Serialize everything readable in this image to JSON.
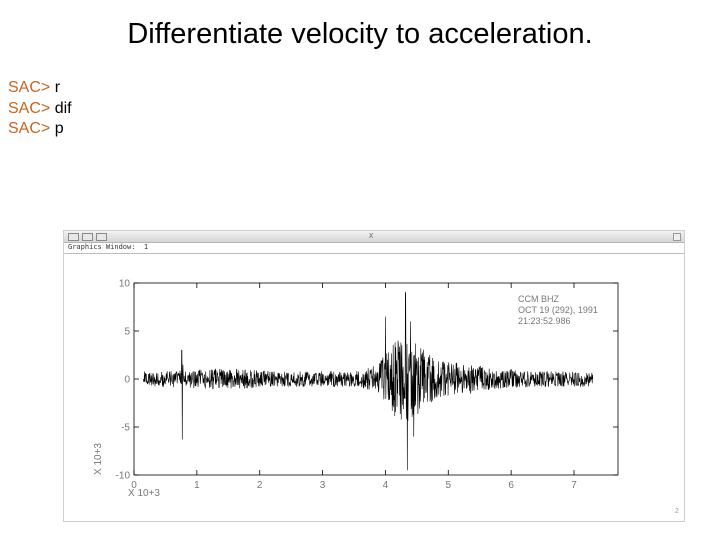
{
  "slide": {
    "title": "Differentiate velocity to acceleration."
  },
  "commands": [
    {
      "prompt": "SAC>",
      "text": "r"
    },
    {
      "prompt": "SAC>",
      "text": "dif"
    },
    {
      "prompt": "SAC>",
      "text": "p"
    }
  ],
  "window": {
    "title_marker": "X",
    "name_label": "Graphics Window:",
    "name_value": "1"
  },
  "plot": {
    "header_lines": [
      "CCM  BHZ",
      "OCT 19 (292), 1991",
      "21:23:52.986"
    ],
    "y_ticks": [
      "10",
      "5",
      "0",
      "-5",
      "-10"
    ],
    "y_multiplier": "X 10+3",
    "x_ticks": [
      "0",
      "1",
      "2",
      "3",
      "4",
      "5",
      "6",
      "7"
    ],
    "x_multiplier": "X 10+3",
    "corner_mark": "2",
    "trace_color": "#000000"
  },
  "chart_data": {
    "type": "line",
    "title": "",
    "xlabel": "X 10+3",
    "ylabel": "X 10+3",
    "xlim": [
      0,
      7.7
    ],
    "ylim": [
      -10,
      10
    ],
    "x_ticks": [
      0,
      1,
      2,
      3,
      4,
      5,
      6,
      7
    ],
    "y_ticks": [
      10,
      5,
      0,
      -5,
      -10
    ],
    "grid": false,
    "series": [
      {
        "values_note_points": [
          [
            0.15,
            0
          ],
          [
            0.76,
            3.0
          ],
          [
            0.77,
            -6.3
          ],
          [
            0.78,
            1.5
          ],
          [
            4.0,
            6.5
          ],
          [
            4.2,
            4.0
          ],
          [
            4.3,
            -2.0
          ],
          [
            4.32,
            9.0
          ],
          [
            4.35,
            -9.5
          ],
          [
            4.4,
            6.0
          ],
          [
            4.45,
            -6.0
          ],
          [
            4.6,
            2.0
          ],
          [
            5.0,
            1.0
          ],
          [
            6.0,
            1.0
          ],
          [
            7.3,
            0
          ]
        ]
      }
    ]
  }
}
